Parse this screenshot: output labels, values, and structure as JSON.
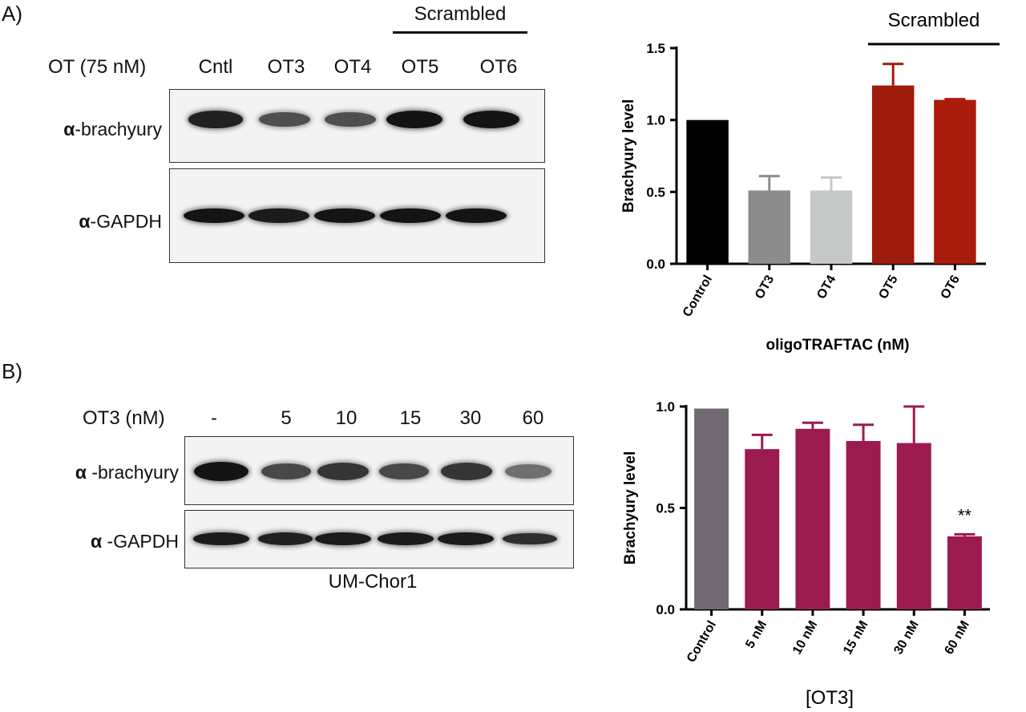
{
  "panel_a": {
    "letter": "A)",
    "treatment_label": "OT (75 nM)",
    "lanes": [
      "Cntl",
      "OT3",
      "OT4",
      "OT5",
      "OT6"
    ],
    "scrambled_label": "Scrambled",
    "blot_rows": [
      "α-brachyury",
      "α-GAPDH"
    ],
    "band_intensity": {
      "brachyury": [
        0.9,
        0.55,
        0.55,
        1.0,
        1.0
      ],
      "gapdh": [
        1.0,
        0.95,
        1.0,
        1.0,
        1.0
      ]
    }
  },
  "panel_b": {
    "letter": "B)",
    "treatment_label": "OT3 (nM)",
    "lanes": [
      "-",
      "5",
      "10",
      "15",
      "30",
      "60"
    ],
    "blot_rows": [
      "α -brachyury",
      "α -GAPDH"
    ],
    "cell_line": "UM-Chor1",
    "band_intensity": {
      "brachyury": [
        1.0,
        0.6,
        0.75,
        0.6,
        0.75,
        0.3
      ],
      "gapdh": [
        0.95,
        0.9,
        0.95,
        0.95,
        0.95,
        0.8
      ]
    }
  },
  "chart_data": [
    {
      "type": "bar",
      "categories": [
        "Control",
        "OT3",
        "OT4",
        "OT5",
        "OT6"
      ],
      "values": [
        1.0,
        0.51,
        0.51,
        1.24,
        1.14
      ],
      "errors": [
        0,
        0.1,
        0.09,
        0.15,
        0.005
      ],
      "colors": [
        "#000000",
        "#8c8c8c",
        "#c6c8c8",
        "#9e1a0a",
        "#aa1c0a"
      ],
      "title": "",
      "xlabel": "oligoTRAFTAC (nM)",
      "ylabel": "Brachyury level",
      "ylim": [
        0,
        1.5
      ],
      "yticks": [
        "0.0",
        "0.5",
        "1.0",
        "1.5"
      ],
      "annotation": "Scrambled",
      "grid": false
    },
    {
      "type": "bar",
      "categories": [
        "Control",
        "5 nM",
        "10 nM",
        "15 nM",
        "30 nM",
        "60 nM"
      ],
      "values": [
        0.99,
        0.79,
        0.89,
        0.83,
        0.82,
        0.36
      ],
      "errors": [
        0,
        0.07,
        0.03,
        0.08,
        0.18,
        0.01
      ],
      "colors": [
        "#716a72",
        "#9c1b4f",
        "#9c1b4f",
        "#9c1b4f",
        "#9c1b4f",
        "#9c1b4f"
      ],
      "title": "",
      "xlabel": "[OT3]",
      "ylabel": "Brachyury level",
      "ylim": [
        0,
        1.0
      ],
      "yticks": [
        "0.0",
        "0.5",
        "1.0"
      ],
      "significance": {
        "index": 5,
        "label": "**"
      },
      "grid": false
    }
  ]
}
